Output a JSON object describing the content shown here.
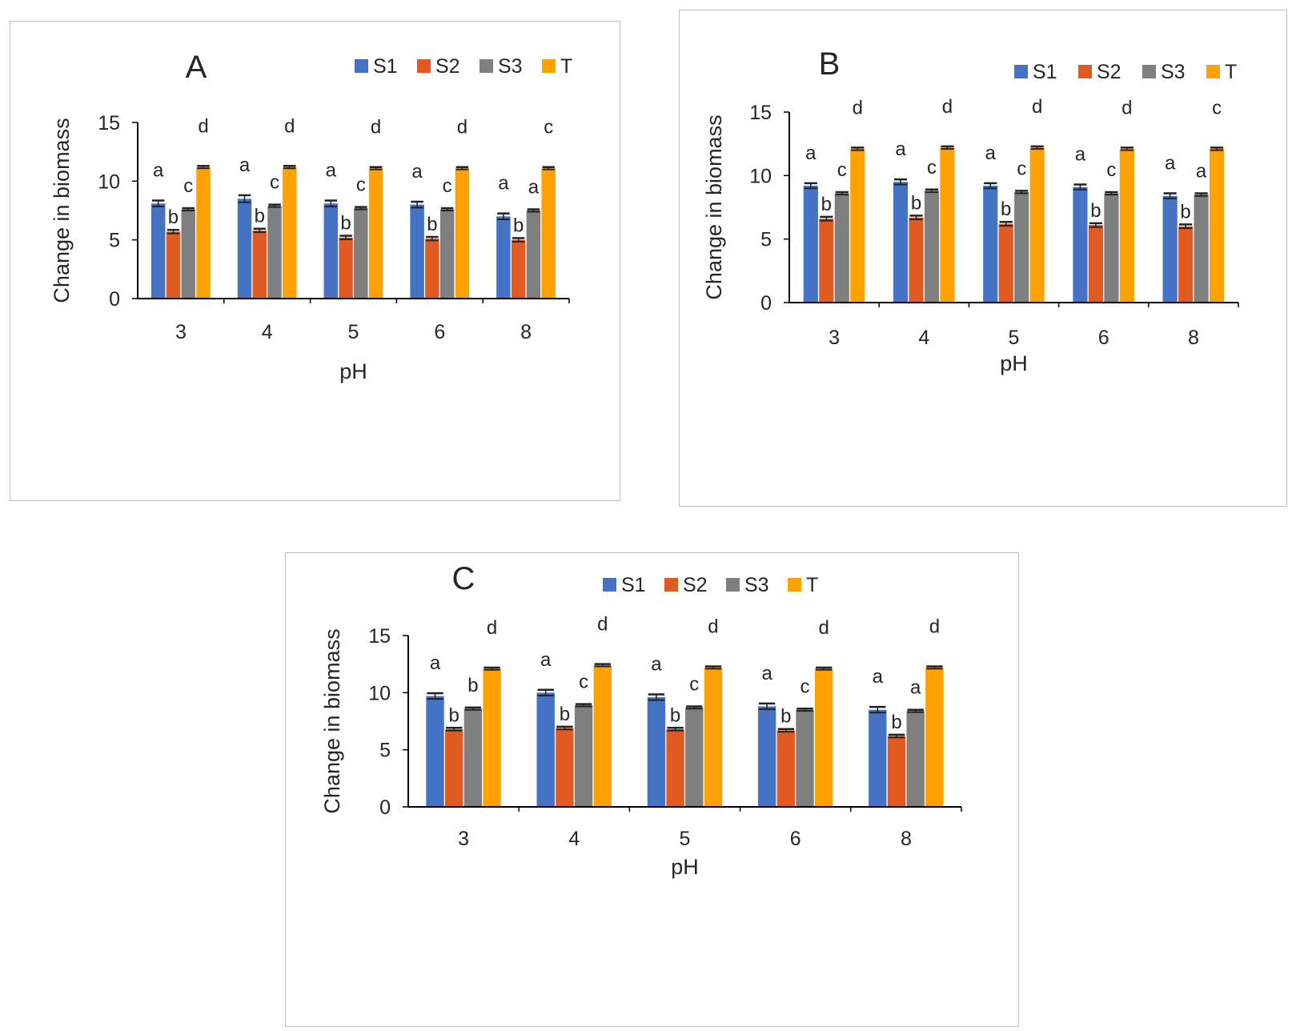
{
  "colors": {
    "S1": "#4472c4",
    "S2": "#e15a21",
    "S3": "#7f7f7f",
    "T": "#ffa100",
    "axis": "#000000",
    "text": "#262626"
  },
  "chart_data": [
    {
      "type": "bar",
      "panel_label": "A",
      "xlabel": "pH",
      "ylabel": "Change in biomass",
      "categories": [
        "3",
        "4",
        "5",
        "6",
        "8"
      ],
      "ylim": [
        0,
        15
      ],
      "yticks": [
        "0",
        "5",
        "10",
        "15"
      ],
      "legend_position": "top-right",
      "grid": false,
      "series": [
        {
          "name": "S1",
          "values": [
            8.1,
            8.5,
            8.1,
            8.0,
            7.0
          ],
          "errors": [
            0.25,
            0.3,
            0.25,
            0.25,
            0.25
          ],
          "letters": [
            "a",
            "a",
            "a",
            "a",
            "a"
          ]
        },
        {
          "name": "S2",
          "values": [
            5.7,
            5.8,
            5.2,
            5.1,
            5.0
          ],
          "errors": [
            0.15,
            0.15,
            0.15,
            0.15,
            0.15
          ],
          "letters": [
            "b",
            "b",
            "b",
            "b",
            "b"
          ]
        },
        {
          "name": "S3",
          "values": [
            7.6,
            7.9,
            7.7,
            7.6,
            7.5
          ],
          "errors": [
            0.1,
            0.1,
            0.1,
            0.1,
            0.1
          ],
          "letters": [
            "c",
            "c",
            "c",
            "c",
            "a"
          ]
        },
        {
          "name": "T",
          "values": [
            11.2,
            11.2,
            11.1,
            11.1,
            11.1
          ],
          "errors": [
            0.1,
            0.1,
            0.1,
            0.1,
            0.1
          ],
          "letters": [
            "d",
            "d",
            "d",
            "d",
            "c"
          ]
        }
      ]
    },
    {
      "type": "bar",
      "panel_label": "B",
      "xlabel": "pH",
      "ylabel": "Change in biomass",
      "categories": [
        "3",
        "4",
        "5",
        "6",
        "8"
      ],
      "ylim": [
        0,
        15
      ],
      "yticks": [
        "0",
        "5",
        "10",
        "15"
      ],
      "legend_position": "top-right",
      "grid": false,
      "series": [
        {
          "name": "S1",
          "values": [
            9.2,
            9.5,
            9.2,
            9.1,
            8.4
          ],
          "errors": [
            0.2,
            0.2,
            0.2,
            0.2,
            0.2
          ],
          "letters": [
            "a",
            "a",
            "a",
            "a",
            "a"
          ]
        },
        {
          "name": "S2",
          "values": [
            6.6,
            6.7,
            6.2,
            6.1,
            6.0
          ],
          "errors": [
            0.15,
            0.15,
            0.15,
            0.15,
            0.15
          ],
          "letters": [
            "b",
            "b",
            "b",
            "b",
            "b"
          ]
        },
        {
          "name": "S3",
          "values": [
            8.6,
            8.8,
            8.7,
            8.6,
            8.5
          ],
          "errors": [
            0.1,
            0.1,
            0.1,
            0.1,
            0.1
          ],
          "letters": [
            "c",
            "c",
            "c",
            "c",
            "a"
          ]
        },
        {
          "name": "T",
          "values": [
            12.1,
            12.2,
            12.2,
            12.1,
            12.1
          ],
          "errors": [
            0.1,
            0.1,
            0.1,
            0.1,
            0.1
          ],
          "letters": [
            "d",
            "d",
            "d",
            "d",
            "c"
          ]
        }
      ]
    },
    {
      "type": "bar",
      "panel_label": "C",
      "xlabel": "pH",
      "ylabel": "Change in biomass",
      "categories": [
        "3",
        "4",
        "5",
        "6",
        "8"
      ],
      "ylim": [
        0,
        15
      ],
      "yticks": [
        "0",
        "5",
        "10",
        "15"
      ],
      "legend_position": "top-right",
      "grid": false,
      "series": [
        {
          "name": "S1",
          "values": [
            9.7,
            10.0,
            9.6,
            8.8,
            8.5
          ],
          "errors": [
            0.25,
            0.25,
            0.25,
            0.25,
            0.25
          ],
          "letters": [
            "a",
            "a",
            "a",
            "a",
            "a"
          ]
        },
        {
          "name": "S2",
          "values": [
            6.8,
            6.9,
            6.8,
            6.7,
            6.2
          ],
          "errors": [
            0.12,
            0.12,
            0.12,
            0.12,
            0.12
          ],
          "letters": [
            "b",
            "b",
            "b",
            "b",
            "b"
          ]
        },
        {
          "name": "S3",
          "values": [
            8.6,
            8.9,
            8.7,
            8.5,
            8.4
          ],
          "errors": [
            0.1,
            0.1,
            0.1,
            0.1,
            0.1
          ],
          "letters": [
            "b",
            "c",
            "c",
            "c",
            "a"
          ]
        },
        {
          "name": "T",
          "values": [
            12.1,
            12.4,
            12.2,
            12.1,
            12.2
          ],
          "errors": [
            0.1,
            0.1,
            0.1,
            0.1,
            0.1
          ],
          "letters": [
            "d",
            "d",
            "d",
            "d",
            "d"
          ]
        }
      ]
    }
  ]
}
